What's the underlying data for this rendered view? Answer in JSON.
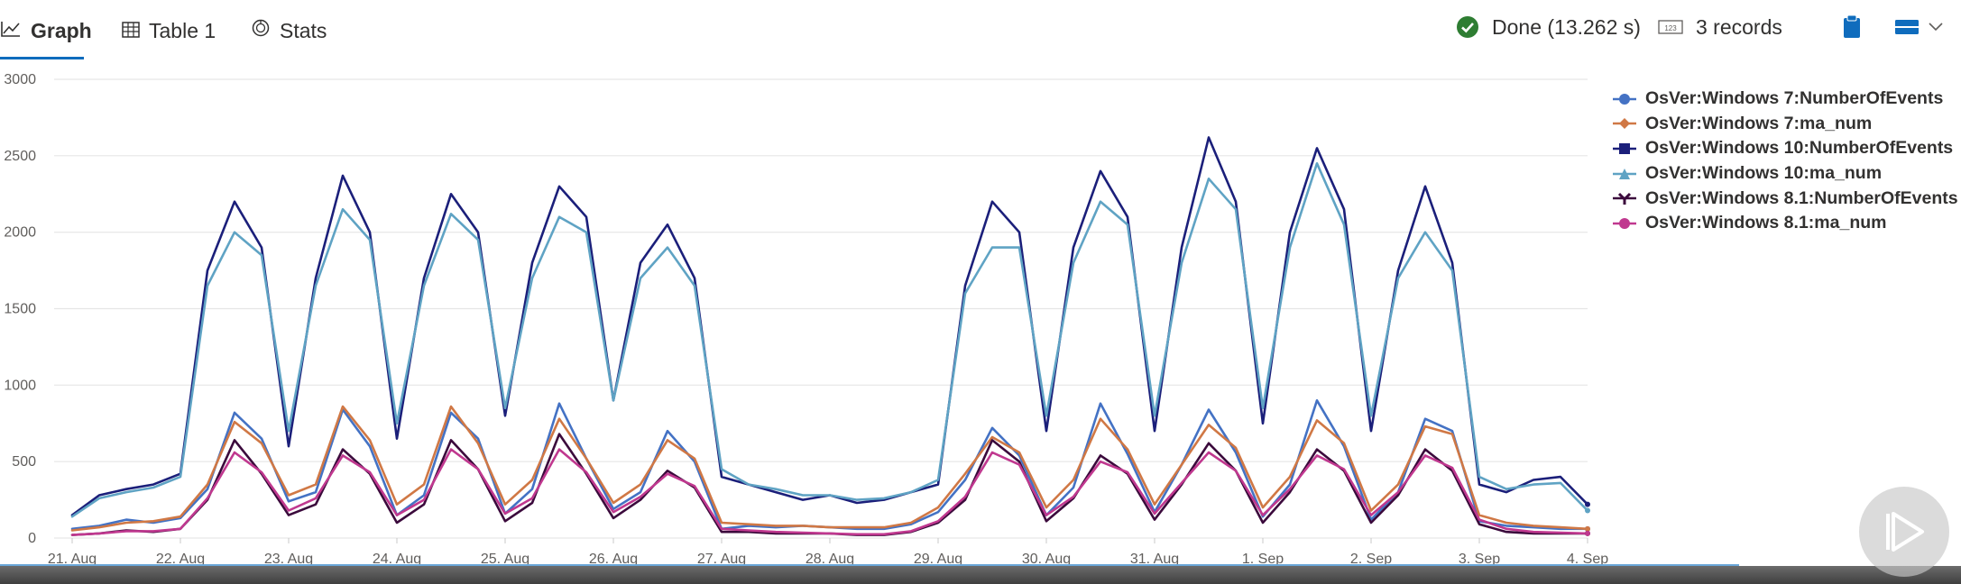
{
  "tabs": [
    {
      "label": "Graph",
      "icon": "line-chart-icon"
    },
    {
      "label": "Table 1",
      "icon": "table-icon"
    },
    {
      "label": "Stats",
      "icon": "stats-icon"
    }
  ],
  "status": {
    "done": "Done (13.262 s)",
    "records": "3 records",
    "records_icon_text": "123"
  },
  "colors": {
    "win7_events": "#4472c4",
    "win7_ma": "#d07845",
    "win10_events": "#1b1f7a",
    "win10_ma": "#5fa3c4",
    "win81_events": "#3b0a3c",
    "win81_ma": "#c0388f",
    "accent": "#0f6cbd",
    "success": "#2e7d32"
  },
  "chart_data": {
    "type": "line",
    "xlabel": "",
    "ylabel": "",
    "ylim": [
      0,
      3000
    ],
    "yticks": [
      0,
      500,
      1000,
      1500,
      2000,
      2500,
      3000
    ],
    "xticks": [
      "21. Aug",
      "22. Aug",
      "23. Aug",
      "24. Aug",
      "25. Aug",
      "26. Aug",
      "27. Aug",
      "28. Aug",
      "29. Aug",
      "30. Aug",
      "31. Aug",
      "1. Sep",
      "2. Sep",
      "3. Sep",
      "4. Sep"
    ],
    "x_unit": "day index from 21. Aug",
    "grid": true,
    "legend_position": "right",
    "series": [
      {
        "name": "OsVer:Windows 7:NumberOfEvents",
        "marker": "circle",
        "color": "#4472c4",
        "x": [
          0,
          0.25,
          0.5,
          0.75,
          1,
          1.25,
          1.5,
          1.75,
          2,
          2.25,
          2.5,
          2.75,
          3,
          3.25,
          3.5,
          3.75,
          4,
          4.25,
          4.5,
          4.75,
          5,
          5.25,
          5.5,
          5.75,
          6,
          6.25,
          6.5,
          6.75,
          7,
          7.25,
          7.5,
          7.75,
          8,
          8.25,
          8.5,
          8.75,
          9,
          9.25,
          9.5,
          9.75,
          10,
          10.25,
          10.5,
          10.75,
          11,
          11.25,
          11.5,
          11.75,
          12,
          12.25,
          12.5,
          12.75,
          13,
          13.25,
          13.5,
          13.75,
          14
        ],
        "values": [
          60,
          80,
          120,
          100,
          130,
          320,
          820,
          650,
          240,
          300,
          840,
          600,
          150,
          280,
          820,
          650,
          160,
          320,
          880,
          520,
          190,
          300,
          700,
          500,
          60,
          80,
          70,
          80,
          70,
          60,
          60,
          90,
          170,
          380,
          720,
          540,
          150,
          330,
          880,
          550,
          170,
          480,
          840,
          560,
          140,
          350,
          900,
          600,
          120,
          300,
          780,
          700,
          110,
          80,
          70,
          60,
          60
        ]
      },
      {
        "name": "OsVer:Windows 7:ma_num",
        "marker": "diamond",
        "color": "#d07845",
        "x": [
          0,
          0.25,
          0.5,
          0.75,
          1,
          1.25,
          1.5,
          1.75,
          2,
          2.25,
          2.5,
          2.75,
          3,
          3.25,
          3.5,
          3.75,
          4,
          4.25,
          4.5,
          4.75,
          5,
          5.25,
          5.5,
          5.75,
          6,
          6.25,
          6.5,
          6.75,
          7,
          7.25,
          7.5,
          7.75,
          8,
          8.25,
          8.5,
          8.75,
          9,
          9.25,
          9.5,
          9.75,
          10,
          10.25,
          10.5,
          10.75,
          11,
          11.25,
          11.5,
          11.75,
          12,
          12.25,
          12.5,
          12.75,
          13,
          13.25,
          13.5,
          13.75,
          14
        ],
        "values": [
          50,
          70,
          100,
          110,
          140,
          350,
          760,
          620,
          280,
          350,
          860,
          640,
          220,
          350,
          860,
          620,
          220,
          380,
          780,
          520,
          230,
          350,
          640,
          520,
          100,
          90,
          80,
          80,
          70,
          70,
          70,
          100,
          200,
          420,
          660,
          560,
          200,
          380,
          780,
          580,
          220,
          480,
          740,
          590,
          200,
          400,
          770,
          620,
          180,
          350,
          730,
          680,
          150,
          100,
          80,
          70,
          60
        ]
      },
      {
        "name": "OsVer:Windows 10:NumberOfEvents",
        "marker": "square",
        "color": "#1b1f7a",
        "x": [
          0,
          0.25,
          0.5,
          0.75,
          1,
          1.25,
          1.5,
          1.75,
          2,
          2.25,
          2.5,
          2.75,
          3,
          3.25,
          3.5,
          3.75,
          4,
          4.25,
          4.5,
          4.75,
          5,
          5.25,
          5.5,
          5.75,
          6,
          6.25,
          6.5,
          6.75,
          7,
          7.25,
          7.5,
          7.75,
          8,
          8.25,
          8.5,
          8.75,
          9,
          9.25,
          9.5,
          9.75,
          10,
          10.25,
          10.5,
          10.75,
          11,
          11.25,
          11.5,
          11.75,
          12,
          12.25,
          12.5,
          12.75,
          13,
          13.25,
          13.5,
          13.75,
          14
        ],
        "values": [
          150,
          280,
          320,
          350,
          420,
          1750,
          2200,
          1900,
          600,
          1700,
          2370,
          2000,
          650,
          1700,
          2250,
          2000,
          800,
          1800,
          2300,
          2100,
          900,
          1800,
          2050,
          1700,
          400,
          350,
          300,
          250,
          280,
          230,
          250,
          300,
          350,
          1650,
          2200,
          2000,
          700,
          1900,
          2400,
          2100,
          700,
          1900,
          2620,
          2200,
          750,
          2000,
          2550,
          2150,
          700,
          1750,
          2300,
          1800,
          350,
          300,
          380,
          400,
          220
        ]
      },
      {
        "name": "OsVer:Windows 10:ma_num",
        "marker": "triangle",
        "color": "#5fa3c4",
        "x": [
          0,
          0.25,
          0.5,
          0.75,
          1,
          1.25,
          1.5,
          1.75,
          2,
          2.25,
          2.5,
          2.75,
          3,
          3.25,
          3.5,
          3.75,
          4,
          4.25,
          4.5,
          4.75,
          5,
          5.25,
          5.5,
          5.75,
          6,
          6.25,
          6.5,
          6.75,
          7,
          7.25,
          7.5,
          7.75,
          8,
          8.25,
          8.5,
          8.75,
          9,
          9.25,
          9.5,
          9.75,
          10,
          10.25,
          10.5,
          10.75,
          11,
          11.25,
          11.5,
          11.75,
          12,
          12.25,
          12.5,
          12.75,
          13,
          13.25,
          13.5,
          13.75,
          14
        ],
        "values": [
          140,
          260,
          300,
          330,
          400,
          1650,
          2000,
          1850,
          700,
          1650,
          2150,
          1950,
          750,
          1650,
          2120,
          1950,
          850,
          1700,
          2100,
          2000,
          900,
          1700,
          1900,
          1650,
          450,
          350,
          320,
          280,
          280,
          250,
          260,
          300,
          380,
          1600,
          1900,
          1900,
          800,
          1800,
          2200,
          2050,
          800,
          1800,
          2350,
          2150,
          850,
          1900,
          2450,
          2050,
          800,
          1700,
          2000,
          1750,
          400,
          320,
          350,
          360,
          180
        ]
      },
      {
        "name": "OsVer:Windows 8.1:NumberOfEvents",
        "marker": "cross",
        "color": "#3b0a3c",
        "x": [
          0,
          0.25,
          0.5,
          0.75,
          1,
          1.25,
          1.5,
          1.75,
          2,
          2.25,
          2.5,
          2.75,
          3,
          3.25,
          3.5,
          3.75,
          4,
          4.25,
          4.5,
          4.75,
          5,
          5.25,
          5.5,
          5.75,
          6,
          6.25,
          6.5,
          6.75,
          7,
          7.25,
          7.5,
          7.75,
          8,
          8.25,
          8.5,
          8.75,
          9,
          9.25,
          9.5,
          9.75,
          10,
          10.25,
          10.5,
          10.75,
          11,
          11.25,
          11.5,
          11.75,
          12,
          12.25,
          12.5,
          12.75,
          13,
          13.25,
          13.5,
          13.75,
          14
        ],
        "values": [
          20,
          30,
          50,
          40,
          60,
          250,
          640,
          420,
          150,
          220,
          580,
          420,
          100,
          220,
          640,
          450,
          110,
          230,
          680,
          420,
          130,
          250,
          440,
          330,
          40,
          40,
          30,
          30,
          30,
          20,
          20,
          40,
          100,
          250,
          640,
          500,
          110,
          260,
          540,
          420,
          120,
          350,
          620,
          440,
          100,
          300,
          580,
          440,
          100,
          280,
          580,
          440,
          90,
          40,
          30,
          30,
          30
        ]
      },
      {
        "name": "OsVer:Windows 8.1:ma_num",
        "marker": "circle",
        "color": "#c0388f",
        "x": [
          0,
          0.25,
          0.5,
          0.75,
          1,
          1.25,
          1.5,
          1.75,
          2,
          2.25,
          2.5,
          2.75,
          3,
          3.25,
          3.5,
          3.75,
          4,
          4.25,
          4.5,
          4.75,
          5,
          5.25,
          5.5,
          5.75,
          6,
          6.25,
          6.5,
          6.75,
          7,
          7.25,
          7.5,
          7.75,
          8,
          8.25,
          8.5,
          8.75,
          9,
          9.25,
          9.5,
          9.75,
          10,
          10.25,
          10.5,
          10.75,
          11,
          11.25,
          11.5,
          11.75,
          12,
          12.25,
          12.5,
          12.75,
          13,
          13.25,
          13.5,
          13.75,
          14
        ],
        "values": [
          20,
          30,
          45,
          45,
          60,
          260,
          560,
          430,
          180,
          260,
          540,
          430,
          150,
          250,
          580,
          450,
          160,
          260,
          580,
          430,
          170,
          270,
          420,
          340,
          60,
          50,
          40,
          35,
          30,
          25,
          25,
          45,
          110,
          270,
          560,
          480,
          150,
          270,
          500,
          430,
          160,
          360,
          560,
          440,
          150,
          320,
          540,
          450,
          150,
          300,
          540,
          460,
          120,
          60,
          40,
          35,
          30
        ]
      }
    ]
  }
}
